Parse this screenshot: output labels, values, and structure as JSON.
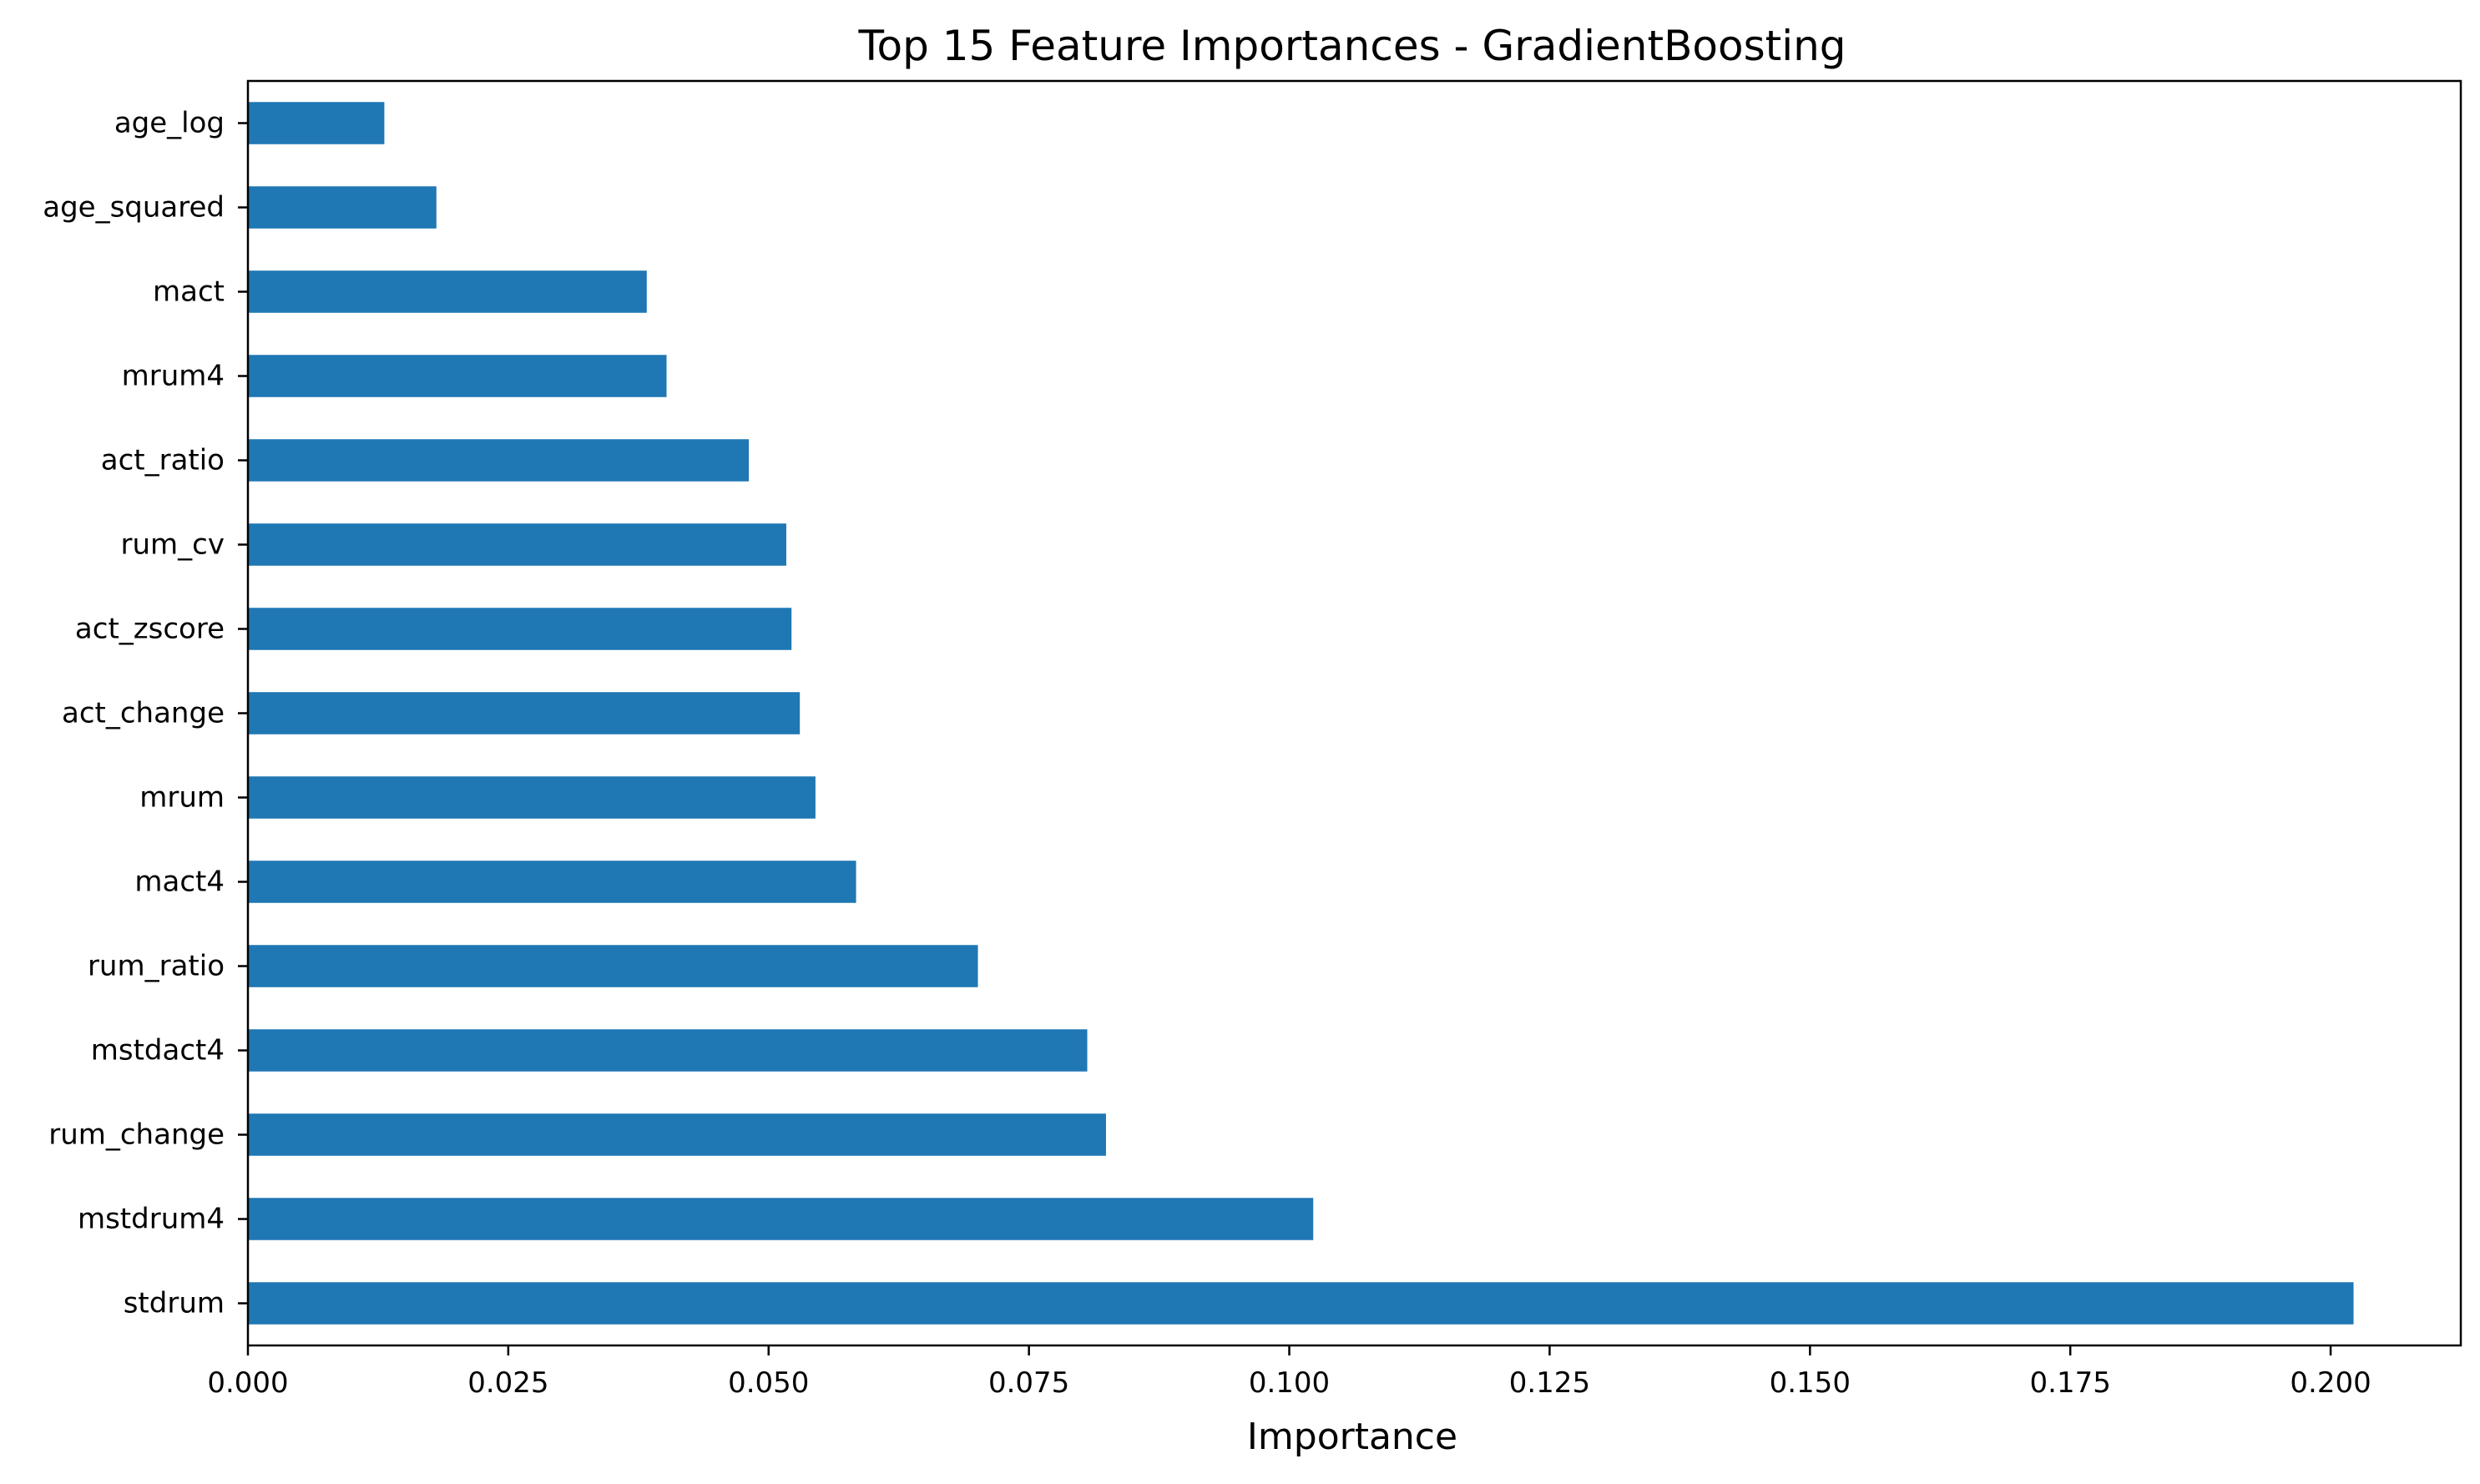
{
  "chart_data": {
    "type": "bar",
    "orientation": "horizontal",
    "title": "Top 15 Feature Importances - GradientBoosting",
    "xlabel": "Importance",
    "ylabel": "",
    "xlim": [
      0.0,
      0.2125
    ],
    "x_ticks": [
      "0.000",
      "0.025",
      "0.050",
      "0.075",
      "0.100",
      "0.125",
      "0.150",
      "0.175",
      "0.200"
    ],
    "x_tick_values": [
      0.0,
      0.025,
      0.05,
      0.075,
      0.1,
      0.125,
      0.15,
      0.175,
      0.2
    ],
    "grid": false,
    "bar_color": "#1f77b4",
    "categories": [
      "age_log",
      "age_squared",
      "mact",
      "mrum4",
      "act_ratio",
      "rum_cv",
      "act_zscore",
      "act_change",
      "mrum",
      "mact4",
      "rum_ratio",
      "mstdact4",
      "rum_change",
      "mstdrum4",
      "stdrum"
    ],
    "values": [
      0.0131,
      0.0181,
      0.0383,
      0.0402,
      0.0481,
      0.0517,
      0.0522,
      0.053,
      0.0545,
      0.0584,
      0.0701,
      0.0806,
      0.0824,
      0.1023,
      0.2022
    ]
  }
}
